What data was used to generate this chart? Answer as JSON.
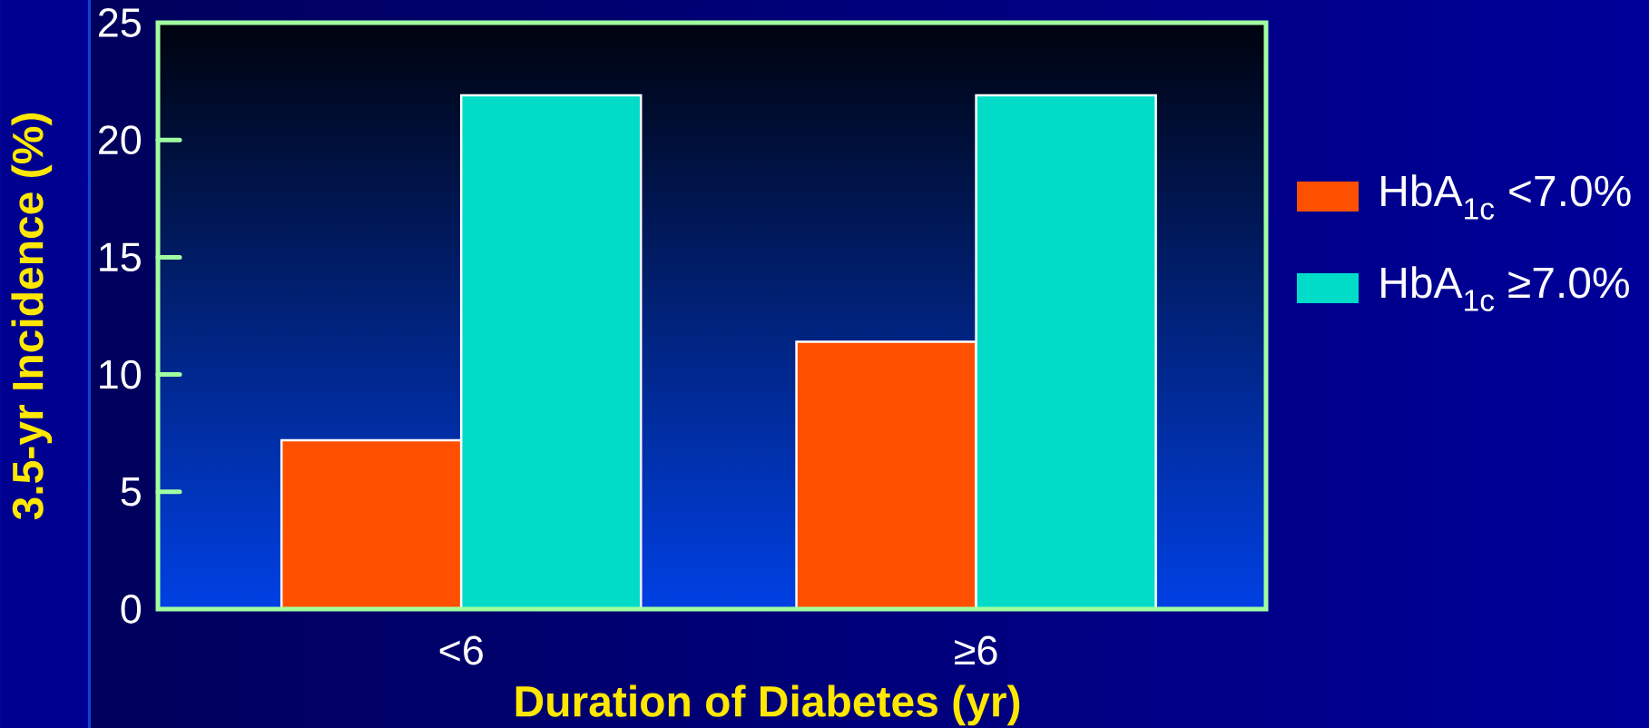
{
  "chart_data": {
    "type": "bar",
    "xlabel": "Duration of Diabetes (yr)",
    "ylabel": "3.5-yr Incidence (%)",
    "categories": [
      "<6",
      "≥6"
    ],
    "series": [
      {
        "name": "HbA$_{1c}$ <7.0%",
        "color": "#ff5000",
        "values": [
          7.2,
          11.4
        ]
      },
      {
        "name": "HbA$_{1c}$ ≥7.0%",
        "color": "#00dcc8",
        "values": [
          21.9,
          21.9
        ]
      }
    ],
    "ylim": [
      0,
      25
    ],
    "yticks": [
      0,
      5,
      10,
      15,
      20,
      25
    ],
    "legend": "right"
  }
}
